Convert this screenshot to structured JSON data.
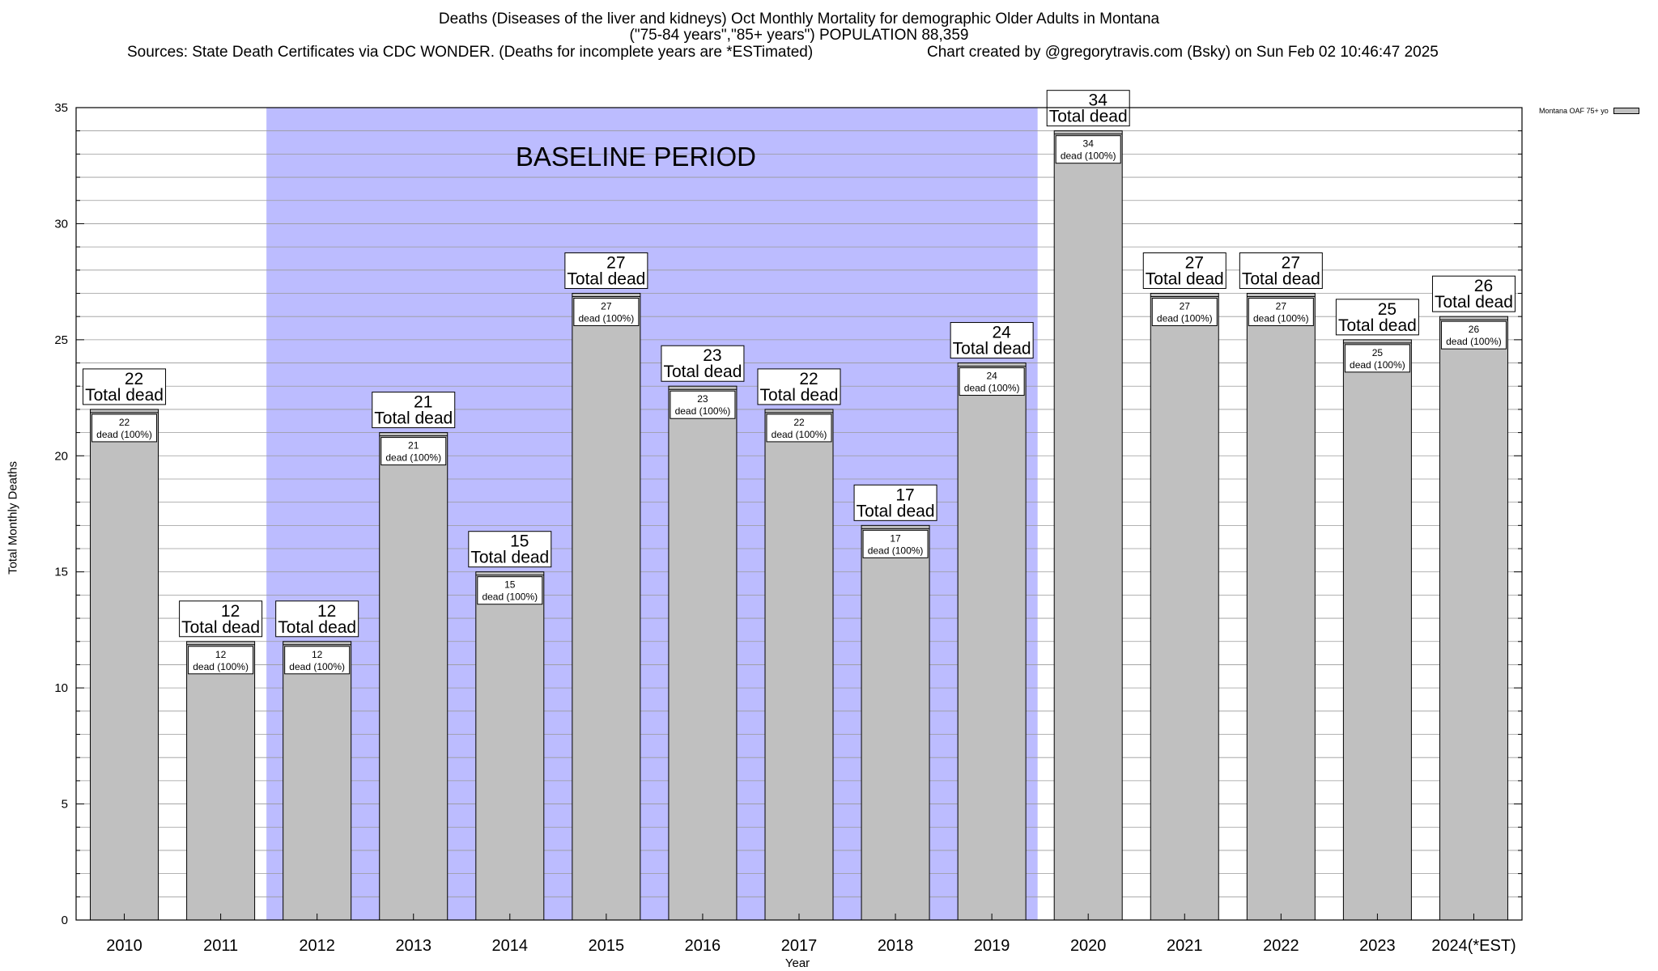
{
  "header": {
    "title_line1": "Deaths (Diseases of the liver and kidneys) Oct Monthly Mortality for demographic Older Adults in Montana",
    "title_line2": "(\"75-84 years\",\"85+ years\") POPULATION 88,359",
    "sources": "Sources: State Death Certificates via CDC WONDER. (Deaths for incomplete years are *ESTimated)",
    "credit": "Chart created by @gregorytravis.com (Bsky) on Sun Feb 02 10:46:47 2025"
  },
  "chart_data": {
    "type": "bar",
    "xlabel": "Year",
    "ylabel": "Total Monthly Deaths",
    "ylim": [
      0,
      35
    ],
    "yticks": [
      0,
      5,
      10,
      15,
      20,
      25,
      30,
      35
    ],
    "grid": true,
    "legend": {
      "position": "top-right",
      "label": "Montana OAF 75+ yo"
    },
    "baseline": {
      "label": "BASELINE PERIOD",
      "from": "2012",
      "to": "2019",
      "color": "#bcbcff"
    },
    "bar_color": "#c0c0c0",
    "categories": [
      "2010",
      "2011",
      "2012",
      "2013",
      "2014",
      "2015",
      "2016",
      "2017",
      "2018",
      "2019",
      "2020",
      "2021",
      "2022",
      "2023",
      "2024(*EST)"
    ],
    "values": [
      22,
      12,
      12,
      21,
      15,
      27,
      23,
      22,
      17,
      24,
      34,
      27,
      27,
      25,
      26
    ],
    "top_label_suffix": "Total dead",
    "inner_label_suffix": "dead (100%)"
  }
}
